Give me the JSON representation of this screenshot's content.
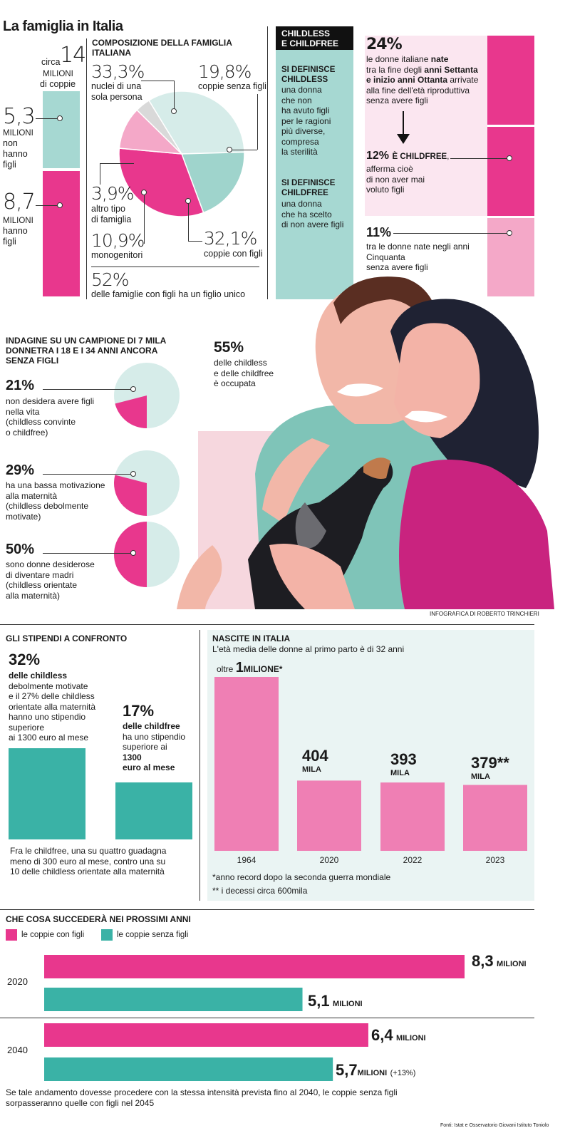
{
  "header": {
    "title": "La famiglia in Italia"
  },
  "couples": {
    "circa": "circa",
    "total": "14",
    "total_unit": "MILIONI",
    "total_caption": "di coppie",
    "no_children_value": "5,3",
    "no_children_unit": "MILIONI",
    "no_children_caption": [
      "non",
      "hanno",
      "figli"
    ],
    "children_value": "8,7",
    "children_unit": "MILIONI",
    "children_caption": [
      "hanno",
      "figli"
    ]
  },
  "composition": {
    "title": "COMPOSIZIONE DELLA FAMIGLIA ITALIANA",
    "items": [
      {
        "value": "33,3%",
        "label": [
          "nuclei di una",
          "sola persona"
        ]
      },
      {
        "value": "19,8%",
        "label": [
          "coppie senza figli"
        ]
      },
      {
        "value": "3,9%",
        "label": [
          "altro tipo",
          "di famiglia"
        ]
      },
      {
        "value": "10,9%",
        "label": [
          "monogenitori"
        ]
      },
      {
        "value": "32,1%",
        "label": [
          "coppie con figli"
        ]
      }
    ],
    "footer_value": "52%",
    "footer_text": "delle famiglie con figli ha un figlio unico"
  },
  "definitions": {
    "title": [
      "CHILDLESS",
      "E CHILDFREE"
    ],
    "childless_head": [
      "SI DEFINISCE",
      "CHILDLESS"
    ],
    "childless_text": [
      "una donna",
      "che non",
      "ha avuto figli",
      "per le ragioni",
      "più diverse,",
      "compresa",
      "la sterilità"
    ],
    "childfree_head": [
      "SI DEFINISCE",
      "CHILDFREE"
    ],
    "childfree_text": [
      "una donna",
      "che ha scelto",
      "di non avere figli"
    ]
  },
  "women": {
    "v1": "24%",
    "t1": [
      "le donne italiane",
      "tra la fine degli",
      "e inizio anni Ottanta",
      "alla fine dell'età riproduttiva",
      "senza avere figli"
    ],
    "t1_bold_a": "nate",
    "t1_bold_b": "anni Settanta",
    "t1_tail": "arrivate",
    "v2": "12%",
    "v2_head": "È CHILDFREE",
    "t2": [
      "afferma cioè",
      "di non aver mai",
      "voluto figli"
    ],
    "v3": "11%",
    "t3": [
      "tra le donne nate negli anni",
      "Cinquanta",
      "senza avere figli"
    ]
  },
  "survey": {
    "title": [
      "INDAGINE SU UN CAMPIONE DI 7 MILA",
      "DONNETRA I 18 E I 34 ANNI ANCORA",
      "SENZA FIGLI"
    ],
    "items": [
      {
        "value": "21%",
        "fraction": 0.21,
        "lines": [
          "non desidera avere figli",
          "nella vita",
          "(childless convinte",
          "o childfree)"
        ]
      },
      {
        "value": "29%",
        "fraction": 0.29,
        "lines": [
          "ha una bassa motivazione",
          "alla maternità",
          "(childless debolmente",
          "motivate)"
        ]
      },
      {
        "value": "50%",
        "fraction": 0.5,
        "lines": [
          "sono donne desiderose",
          "di diventare madri",
          "(childless orientate",
          "alla maternità)"
        ]
      }
    ],
    "employed_value": "55%",
    "employed_text": [
      "delle childless",
      "e delle childfree",
      "è occupata"
    ],
    "credit": "INFOGRAFICA DI ROBERTO TRINCHIERI"
  },
  "salaries": {
    "title": "GLI STIPENDI A CONFRONTO",
    "v1": "32%",
    "t1": [
      "delle childless",
      "debolmente motivate",
      "e il 27% delle childless",
      "orientate alla maternità",
      "hanno uno stipendio",
      "superiore",
      "ai 1300 euro al mese"
    ],
    "v2": "17%",
    "t2": [
      "delle childfree",
      "ha uno stipendio",
      "superiore ai",
      "1300",
      "euro al mese"
    ],
    "footer": [
      "Fra le childfree, una su quattro guadagna",
      "meno di 300 euro al mese, contro una su",
      "10 delle childless  orientate alla maternità"
    ]
  },
  "births": {
    "title": "NASCITE IN ITALIA",
    "subtitle": "L'età media delle donne al primo parto è di 32 anni",
    "bar_labels": [
      {
        "pre": "oltre",
        "num": "1",
        "unit": "MILIONE*"
      },
      {
        "num": "404",
        "unit": "MILA"
      },
      {
        "num": "393",
        "unit": "MILA"
      },
      {
        "num": "379**",
        "unit": "MILA"
      }
    ],
    "note1": "*anno record dopo la seconda guerra mondiale",
    "note2": "** i decessi circa 600mila"
  },
  "future": {
    "title": "CHE COSA SUCCEDERÀ NEI PROSSIMI ANNI",
    "legend": [
      "le coppie con figli",
      "le coppie senza figli"
    ],
    "rows": [
      {
        "year": "2020",
        "with": "8,3",
        "with_unit": "MILIONI",
        "without": "5,1",
        "without_unit": "MILIONI"
      },
      {
        "year": "2040",
        "with": "6,4",
        "with_unit": "MILIONI",
        "without": "5,7",
        "without_unit": "MILIONI",
        "without_note": "(+13%)"
      }
    ],
    "footer": [
      "Se tale andamento dovesse procedere con la stessa intensità prevista fino al 2040, le coppie senza figli",
      "sorpasseranno quelle con figli nel 2045"
    ],
    "source": "Fonti: Istat e Osservatorio Giovani Istituto Toniolo"
  },
  "colors": {
    "pink": "#e8378d",
    "teal": "#3ab2a6",
    "lightteal": "#a6d8d2",
    "lightpink": "#f4a8c8",
    "barpink": "#ef7fb4"
  },
  "chart_data": [
    {
      "type": "pie",
      "title": "COMPOSIZIONE DELLA FAMIGLIA ITALIANA",
      "slices": [
        {
          "label": "nuclei di una sola persona",
          "value": 33.3
        },
        {
          "label": "coppie senza figli",
          "value": 19.8
        },
        {
          "label": "coppie con figli",
          "value": 32.1
        },
        {
          "label": "monogenitori",
          "value": 10.9
        },
        {
          "label": "altro tipo di famiglia",
          "value": 3.9
        }
      ]
    },
    {
      "type": "bar",
      "title": "NASCITE IN ITALIA",
      "categories": [
        "1964",
        "2020",
        "2022",
        "2023"
      ],
      "values": [
        1000000,
        404000,
        393000,
        379000
      ]
    },
    {
      "type": "bar",
      "title": "GLI STIPENDI A CONFRONTO",
      "categories": [
        "childless debolmente motivate",
        "childfree"
      ],
      "values": [
        32,
        17
      ]
    },
    {
      "type": "bar",
      "title": "CHE COSA SUCCEDERÀ NEI PROSSIMI ANNI",
      "categories": [
        "2020",
        "2040"
      ],
      "series": [
        {
          "name": "le coppie con figli",
          "values": [
            8.3,
            6.4
          ]
        },
        {
          "name": "le coppie senza figli",
          "values": [
            5.1,
            5.7
          ]
        }
      ]
    }
  ]
}
